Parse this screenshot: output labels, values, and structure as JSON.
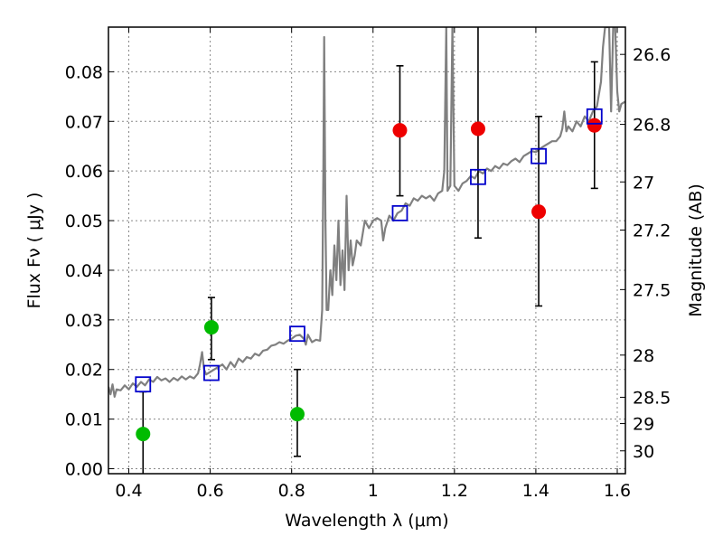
{
  "chart_data": {
    "type": "scatter",
    "xlabel": "Wavelength  λ (μm)",
    "ylabel": "Flux  Fν  ( μJy )",
    "y2label": "Magnitude (AB)",
    "xlim": [
      0.35,
      1.62
    ],
    "ylim": [
      -0.001,
      0.089
    ],
    "grid": true,
    "x_ticks": [
      0.4,
      0.6,
      0.8,
      1.0,
      1.2,
      1.4,
      1.6
    ],
    "x_tick_labels": [
      "0.4",
      "0.6",
      "0.8",
      "1",
      "1.2",
      "1.4",
      "1.6"
    ],
    "y_ticks": [
      0.0,
      0.01,
      0.02,
      0.03,
      0.04,
      0.05,
      0.06,
      0.07,
      0.08
    ],
    "y_tick_labels": [
      "0.00",
      "0.01",
      "0.02",
      "0.03",
      "0.04",
      "0.05",
      "0.06",
      "0.07",
      "0.08"
    ],
    "y2_ticks": [
      {
        "label": "26.6",
        "flux": 0.0835
      },
      {
        "label": "26.8",
        "flux": 0.0694
      },
      {
        "label": "27",
        "flux": 0.0578
      },
      {
        "label": "27.2",
        "flux": 0.0481
      },
      {
        "label": "27.5",
        "flux": 0.0361
      },
      {
        "label": "28",
        "flux": 0.0229
      },
      {
        "label": "28.5",
        "flux": 0.0144
      },
      {
        "label": "29",
        "flux": 0.0091
      },
      {
        "label": "30",
        "flux": 0.0036
      }
    ],
    "colors": {
      "model": "#808080",
      "observed_optical": "#00bb00",
      "observed_nir": "#ee0000",
      "model_photometry": "#0000cc",
      "errorbar": "#000000",
      "grid": "#888888"
    },
    "series": [
      {
        "kind": "line",
        "points": [
          [
            0.35,
            0.0165
          ],
          [
            0.355,
            0.015
          ],
          [
            0.36,
            0.017
          ],
          [
            0.365,
            0.0145
          ],
          [
            0.37,
            0.016
          ],
          [
            0.38,
            0.0158
          ],
          [
            0.39,
            0.0168
          ],
          [
            0.4,
            0.016
          ],
          [
            0.41,
            0.0172
          ],
          [
            0.42,
            0.0165
          ],
          [
            0.43,
            0.0175
          ],
          [
            0.44,
            0.0168
          ],
          [
            0.45,
            0.018
          ],
          [
            0.46,
            0.0175
          ],
          [
            0.47,
            0.0185
          ],
          [
            0.48,
            0.0178
          ],
          [
            0.49,
            0.0182
          ],
          [
            0.5,
            0.0175
          ],
          [
            0.51,
            0.0183
          ],
          [
            0.52,
            0.0178
          ],
          [
            0.53,
            0.0186
          ],
          [
            0.54,
            0.018
          ],
          [
            0.55,
            0.0186
          ],
          [
            0.56,
            0.0182
          ],
          [
            0.57,
            0.0192
          ],
          [
            0.575,
            0.021
          ],
          [
            0.58,
            0.0235
          ],
          [
            0.585,
            0.02
          ],
          [
            0.59,
            0.019
          ],
          [
            0.6,
            0.0195
          ],
          [
            0.61,
            0.02
          ],
          [
            0.62,
            0.0205
          ],
          [
            0.63,
            0.021
          ],
          [
            0.64,
            0.02
          ],
          [
            0.65,
            0.0215
          ],
          [
            0.66,
            0.0205
          ],
          [
            0.67,
            0.0222
          ],
          [
            0.68,
            0.0215
          ],
          [
            0.69,
            0.0225
          ],
          [
            0.7,
            0.0222
          ],
          [
            0.71,
            0.0232
          ],
          [
            0.72,
            0.0228
          ],
          [
            0.73,
            0.0238
          ],
          [
            0.74,
            0.024
          ],
          [
            0.75,
            0.0248
          ],
          [
            0.76,
            0.025
          ],
          [
            0.77,
            0.0255
          ],
          [
            0.78,
            0.0252
          ],
          [
            0.79,
            0.0258
          ],
          [
            0.8,
            0.0262
          ],
          [
            0.81,
            0.0268
          ],
          [
            0.82,
            0.027
          ],
          [
            0.83,
            0.0262
          ],
          [
            0.835,
            0.025
          ],
          [
            0.84,
            0.027
          ],
          [
            0.85,
            0.0255
          ],
          [
            0.86,
            0.026
          ],
          [
            0.87,
            0.0258
          ],
          [
            0.875,
            0.032
          ],
          [
            0.878,
            0.06
          ],
          [
            0.88,
            0.087
          ],
          [
            0.883,
            0.05
          ],
          [
            0.886,
            0.032
          ],
          [
            0.89,
            0.032
          ],
          [
            0.895,
            0.04
          ],
          [
            0.9,
            0.035
          ],
          [
            0.905,
            0.045
          ],
          [
            0.91,
            0.038
          ],
          [
            0.915,
            0.05
          ],
          [
            0.92,
            0.037
          ],
          [
            0.925,
            0.044
          ],
          [
            0.93,
            0.036
          ],
          [
            0.935,
            0.055
          ],
          [
            0.94,
            0.04
          ],
          [
            0.945,
            0.046
          ],
          [
            0.95,
            0.041
          ],
          [
            0.955,
            0.043
          ],
          [
            0.96,
            0.046
          ],
          [
            0.97,
            0.045
          ],
          [
            0.98,
            0.05
          ],
          [
            0.99,
            0.0485
          ],
          [
            1.0,
            0.05
          ],
          [
            1.01,
            0.0505
          ],
          [
            1.02,
            0.05
          ],
          [
            1.025,
            0.046
          ],
          [
            1.03,
            0.0485
          ],
          [
            1.04,
            0.051
          ],
          [
            1.05,
            0.05
          ],
          [
            1.06,
            0.0515
          ],
          [
            1.07,
            0.052
          ],
          [
            1.08,
            0.0535
          ],
          [
            1.09,
            0.053
          ],
          [
            1.1,
            0.0545
          ],
          [
            1.11,
            0.054
          ],
          [
            1.12,
            0.055
          ],
          [
            1.13,
            0.0545
          ],
          [
            1.14,
            0.055
          ],
          [
            1.15,
            0.054
          ],
          [
            1.16,
            0.0555
          ],
          [
            1.17,
            0.056
          ],
          [
            1.175,
            0.06
          ],
          [
            1.18,
            0.089
          ],
          [
            1.183,
            0.056
          ],
          [
            1.19,
            0.057
          ],
          [
            1.195,
            0.089
          ],
          [
            1.2,
            0.057
          ],
          [
            1.21,
            0.056
          ],
          [
            1.22,
            0.0575
          ],
          [
            1.23,
            0.058
          ],
          [
            1.24,
            0.059
          ],
          [
            1.25,
            0.0585
          ],
          [
            1.26,
            0.06
          ],
          [
            1.27,
            0.0595
          ],
          [
            1.28,
            0.0605
          ],
          [
            1.29,
            0.06
          ],
          [
            1.3,
            0.061
          ],
          [
            1.31,
            0.0605
          ],
          [
            1.32,
            0.0615
          ],
          [
            1.33,
            0.0612
          ],
          [
            1.34,
            0.062
          ],
          [
            1.35,
            0.0625
          ],
          [
            1.36,
            0.0618
          ],
          [
            1.37,
            0.063
          ],
          [
            1.38,
            0.0635
          ],
          [
            1.39,
            0.064
          ],
          [
            1.4,
            0.0638
          ],
          [
            1.41,
            0.0645
          ],
          [
            1.42,
            0.065
          ],
          [
            1.43,
            0.0655
          ],
          [
            1.44,
            0.066
          ],
          [
            1.45,
            0.066
          ],
          [
            1.46,
            0.067
          ],
          [
            1.465,
            0.0685
          ],
          [
            1.47,
            0.072
          ],
          [
            1.475,
            0.068
          ],
          [
            1.48,
            0.069
          ],
          [
            1.49,
            0.068
          ],
          [
            1.5,
            0.07
          ],
          [
            1.51,
            0.069
          ],
          [
            1.52,
            0.071
          ],
          [
            1.53,
            0.07
          ],
          [
            1.54,
            0.072
          ],
          [
            1.55,
            0.073
          ],
          [
            1.56,
            0.078
          ],
          [
            1.565,
            0.085
          ],
          [
            1.57,
            0.089
          ],
          [
            1.58,
            0.089
          ],
          [
            1.585,
            0.072
          ],
          [
            1.59,
            0.089
          ],
          [
            1.595,
            0.089
          ],
          [
            1.6,
            0.076
          ],
          [
            1.605,
            0.072
          ],
          [
            1.61,
            0.0735
          ],
          [
            1.62,
            0.074
          ]
        ]
      },
      {
        "kind": "points",
        "marker": "circle",
        "color_key": "observed_optical",
        "points": [
          {
            "x": 0.435,
            "y": 0.007,
            "err_lo": 0.009,
            "err_hi": 0.0085
          },
          {
            "x": 0.603,
            "y": 0.0285,
            "err_lo": 0.0065,
            "err_hi": 0.006
          },
          {
            "x": 0.814,
            "y": 0.011,
            "err_lo": 0.0085,
            "err_hi": 0.009
          }
        ]
      },
      {
        "kind": "points",
        "marker": "circle",
        "color_key": "observed_nir",
        "points": [
          {
            "x": 1.066,
            "y": 0.0682,
            "err_lo": 0.0132,
            "err_hi": 0.013
          },
          {
            "x": 1.258,
            "y": 0.0685,
            "err_lo": 0.022,
            "err_hi": 0.022
          },
          {
            "x": 1.407,
            "y": 0.0518,
            "err_lo": 0.019,
            "err_hi": 0.0192
          },
          {
            "x": 1.544,
            "y": 0.0692,
            "err_lo": 0.0127,
            "err_hi": 0.0128
          }
        ]
      },
      {
        "kind": "points",
        "marker": "square",
        "color_key": "model_photometry",
        "points": [
          {
            "x": 0.435,
            "y": 0.017
          },
          {
            "x": 0.603,
            "y": 0.0193
          },
          {
            "x": 0.814,
            "y": 0.0272
          },
          {
            "x": 1.066,
            "y": 0.0515
          },
          {
            "x": 1.258,
            "y": 0.0588
          },
          {
            "x": 1.407,
            "y": 0.063
          },
          {
            "x": 1.544,
            "y": 0.071
          }
        ]
      }
    ]
  }
}
